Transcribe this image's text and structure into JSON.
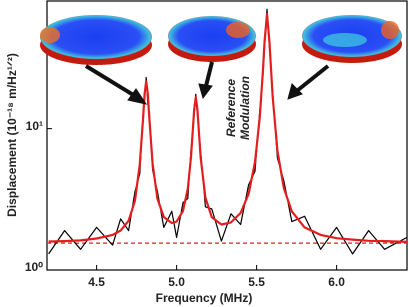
{
  "chart_data": {
    "type": "line",
    "xlabel": "Frequency (MHz)",
    "ylabel": "Displacement (10⁻¹⁸ m/Hz¹ᐟ²)",
    "annotations": [
      "Reference",
      "Modulation"
    ],
    "log_y": true,
    "xlim": [
      4.19,
      6.44
    ],
    "ylim": [
      1,
      80
    ],
    "xticks": [
      4.5,
      {
        "value": 5,
        "label": "5.0"
      },
      5.5,
      {
        "value": 6,
        "label": "6.0"
      }
    ],
    "yticks": [
      {
        "value": 1,
        "label": "10⁰"
      },
      {
        "value": 10,
        "label": "10¹"
      }
    ],
    "x": [
      4.2,
      4.3,
      4.4,
      4.5,
      4.6,
      4.65,
      4.7,
      4.74,
      4.77,
      4.79,
      4.8,
      4.81,
      4.82,
      4.83,
      4.85,
      4.88,
      4.92,
      4.97,
      5.0,
      5.04,
      5.07,
      5.09,
      5.11,
      5.12,
      5.13,
      5.15,
      5.18,
      5.22,
      5.28,
      5.34,
      5.4,
      5.45,
      5.49,
      5.52,
      5.54,
      5.55,
      5.565,
      5.58,
      5.6,
      5.63,
      5.67,
      5.72,
      5.8,
      5.9,
      6.0,
      6.1,
      6.2,
      6.3,
      6.44
    ],
    "series": [
      {
        "color": "#000000",
        "width": 1.2,
        "values": [
          1.3,
          1.9,
          1.4,
          2.0,
          1.5,
          2.3,
          1.9,
          3.6,
          4.8,
          12.5,
          16,
          23,
          15,
          12.8,
          5.1,
          3.6,
          2.0,
          2.6,
          1.7,
          3.0,
          3.2,
          7.1,
          12.5,
          17.5,
          12.6,
          7.0,
          2.8,
          2.7,
          1.6,
          2.5,
          2.1,
          4.0,
          5.0,
          13.5,
          24,
          38,
          70,
          38,
          18.5,
          6.2,
          4.3,
          2.2,
          2.4,
          1.4,
          2.0,
          1.3,
          1.9,
          1.4,
          1.7
        ]
      },
      {
        "color": "#e41e1e",
        "width": 2.2,
        "values": [
          1.59,
          1.6,
          1.62,
          1.67,
          1.77,
          1.9,
          2.23,
          3.1,
          5.6,
          11.6,
          17.6,
          21.6,
          17.6,
          11.7,
          5.65,
          3.2,
          2.37,
          2.15,
          2.2,
          2.62,
          3.76,
          6.3,
          13.7,
          16.7,
          13.7,
          6.3,
          3.25,
          2.36,
          2.1,
          2.17,
          2.53,
          3.45,
          5.8,
          12.1,
          26.2,
          41.6,
          64.6,
          41.6,
          17.1,
          7.0,
          3.8,
          2.6,
          2.0,
          1.77,
          1.68,
          1.64,
          1.61,
          1.6,
          1.58
        ]
      }
    ],
    "baseline": {
      "value": 1.55,
      "color": "#e41e1e"
    }
  }
}
